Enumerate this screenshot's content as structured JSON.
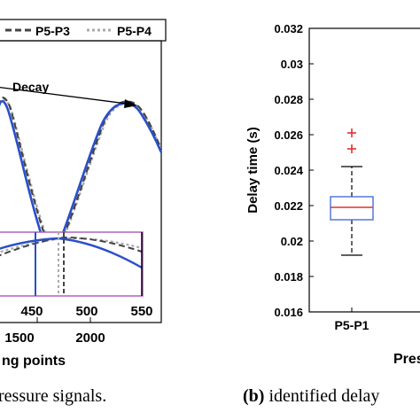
{
  "left_panel": {
    "legend_items": [
      {
        "label": "P5-P3",
        "color": "#444444",
        "dash": "7,4"
      },
      {
        "label": "P5-P4",
        "color": "#aaaaaa",
        "dash": "3,3"
      }
    ],
    "x_tick_labels": [
      "1500",
      "2000"
    ],
    "xlabel_fragment": "ng points",
    "annotation": "Decay",
    "inset_tick_labels": [
      "450",
      "500",
      "550"
    ],
    "inset_tick_color": "#c040c0",
    "signal_color": "#2a4fc9",
    "inset_border_color": "#b060c0"
  },
  "caption_left": "ressure signals.",
  "caption_right": {
    "bold": "(b)",
    "rest": " identified delay"
  },
  "chart_data": {
    "type": "box",
    "ylabel": "Delay time (s)",
    "xlabel_fragment": "Pres",
    "ylim": [
      0.016,
      0.032
    ],
    "yticks": [
      "0.016",
      "0.018",
      "0.02",
      "0.022",
      "0.024",
      "0.026",
      "0.028",
      "0.03",
      "0.032"
    ],
    "grid": false,
    "boxes": [
      {
        "category": "P5-P1",
        "whisker_low": 0.0192,
        "q1": 0.0212,
        "median": 0.0219,
        "q3": 0.0225,
        "whisker_high": 0.0242,
        "outliers": [
          0.0252,
          0.0261
        ],
        "box_color": "#4a6fd4",
        "median_color": "#e03030",
        "outlier_color": "#e03030"
      }
    ]
  }
}
